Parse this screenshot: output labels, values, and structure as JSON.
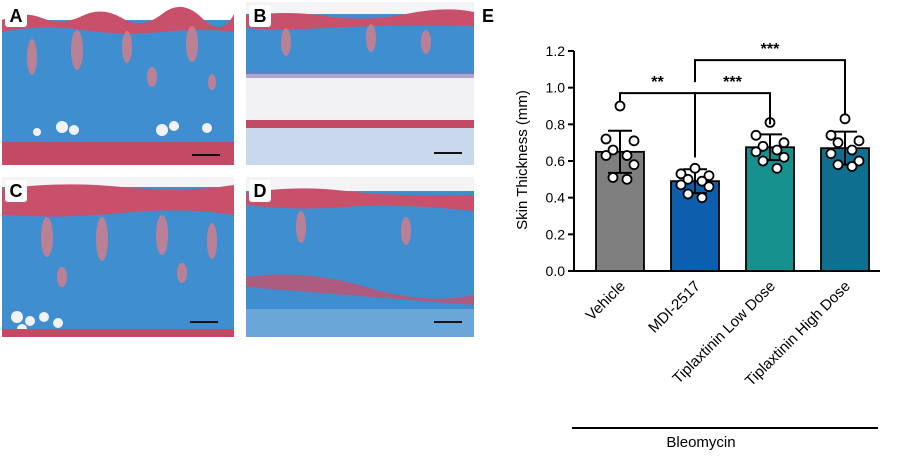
{
  "panels": [
    {
      "label": "A"
    },
    {
      "label": "B"
    },
    {
      "label": "C"
    },
    {
      "label": "D"
    }
  ],
  "colors": {
    "collagen_blue": "#3f8fd0",
    "keratin_red": "#c8506a",
    "fat_white": "#f4f4f6"
  },
  "chart_data": {
    "type": "bar",
    "panel_label": "E",
    "categories": [
      "Vehicle",
      "MDI-2517",
      "Tiplaxtinin Low Dose",
      "Tiplaxtinin High Dose"
    ],
    "values": [
      0.65,
      0.49,
      0.675,
      0.67
    ],
    "errors": [
      0.115,
      0.065,
      0.07,
      0.09
    ],
    "bar_colors": [
      "#7f7f7f",
      "#0b5fad",
      "#16918e",
      "#0f6f8e"
    ],
    "points": [
      [
        0.9,
        0.72,
        0.71,
        0.66,
        0.63,
        0.63,
        0.58,
        0.51,
        0.5
      ],
      [
        0.56,
        0.53,
        0.52,
        0.5,
        0.49,
        0.47,
        0.46,
        0.42,
        0.4
      ],
      [
        0.81,
        0.74,
        0.7,
        0.68,
        0.66,
        0.65,
        0.62,
        0.6,
        0.56
      ],
      [
        0.83,
        0.74,
        0.71,
        0.7,
        0.66,
        0.64,
        0.6,
        0.58,
        0.57
      ]
    ],
    "ylabel": "Skin Thickness (mm)",
    "ylim": [
      0,
      1.2
    ],
    "yticks": [
      "0.0",
      "0.2",
      "0.4",
      "0.6",
      "0.8",
      "1.0",
      "1.2"
    ],
    "significance": [
      {
        "from": 0,
        "to": 1,
        "label": "**"
      },
      {
        "from": 1,
        "to": 2,
        "label": "***"
      },
      {
        "from": 1,
        "to": 3,
        "label": "***"
      }
    ],
    "group_label": "Bleomycin"
  }
}
